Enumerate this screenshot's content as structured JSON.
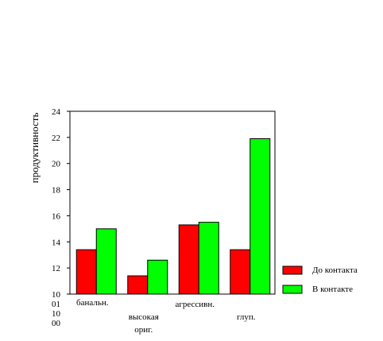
{
  "chart_data": {
    "type": "bar",
    "ylabel": "продуктивность",
    "xlabel": "",
    "ylim": [
      10,
      24
    ],
    "yticks": [
      24,
      22,
      20,
      18,
      16,
      14,
      12,
      10
    ],
    "extra_tick_lines": [
      "01",
      "10",
      "00"
    ],
    "categories": [
      [
        "банальн."
      ],
      [
        "высокая",
        "ориг."
      ],
      [
        "агрессивн."
      ],
      [
        "глуп."
      ]
    ],
    "series": [
      {
        "name": "До контакта",
        "color": "#ff0000",
        "values": [
          13.4,
          11.4,
          15.3,
          13.4
        ]
      },
      {
        "name": "В контакте",
        "color": "#00ff00",
        "values": [
          15.0,
          12.6,
          15.5,
          21.9
        ]
      }
    ],
    "legend_position": "bottom-right",
    "grid": false
  }
}
